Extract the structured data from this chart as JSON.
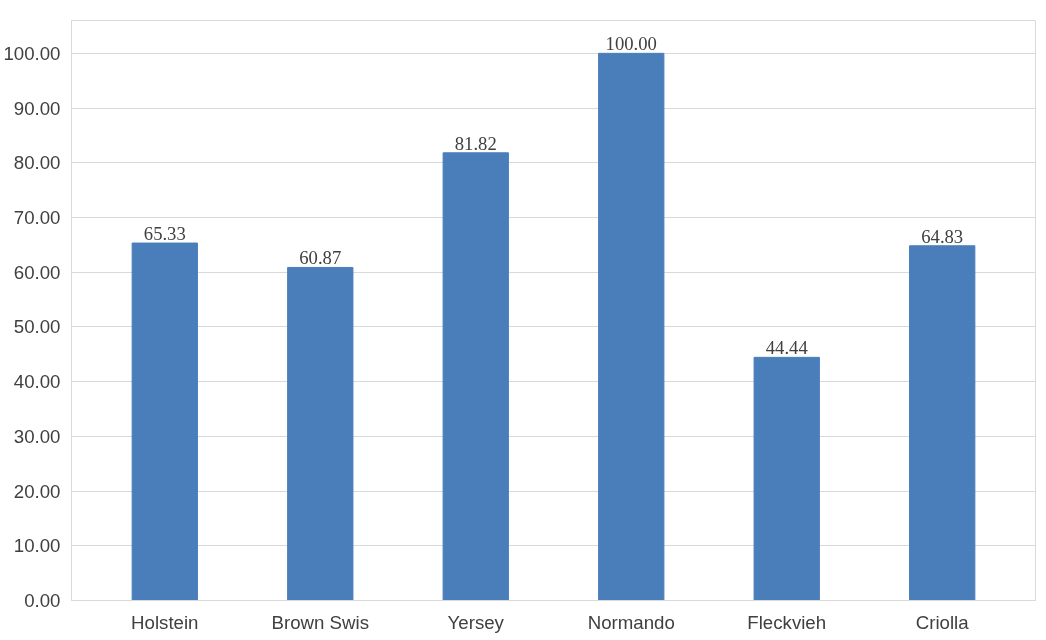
{
  "chart_data": {
    "type": "bar",
    "categories": [
      "Holstein",
      "Brown Swis",
      "Yersey",
      "Normando",
      "Fleckvieh",
      "Criolla"
    ],
    "values": [
      65.33,
      60.87,
      81.82,
      100.0,
      44.44,
      64.83
    ],
    "value_labels": [
      "65.33",
      "60.87",
      "81.82",
      "100.00",
      "44.44",
      "64.83"
    ],
    "color": "#4a7ebb",
    "ylim": [
      0,
      106
    ],
    "yticks": [
      {
        "value": 0,
        "label": "0.00"
      },
      {
        "value": 10,
        "label": "10.00"
      },
      {
        "value": 20,
        "label": "20.00"
      },
      {
        "value": 30,
        "label": "30.00"
      },
      {
        "value": 40,
        "label": "40.00"
      },
      {
        "value": 50,
        "label": "50.00"
      },
      {
        "value": 60,
        "label": "60.00"
      },
      {
        "value": 70,
        "label": "70.00"
      },
      {
        "value": 80,
        "label": "80.00"
      },
      {
        "value": 90,
        "label": "90.00"
      },
      {
        "value": 100,
        "label": "100.00"
      }
    ],
    "grid": "y"
  }
}
